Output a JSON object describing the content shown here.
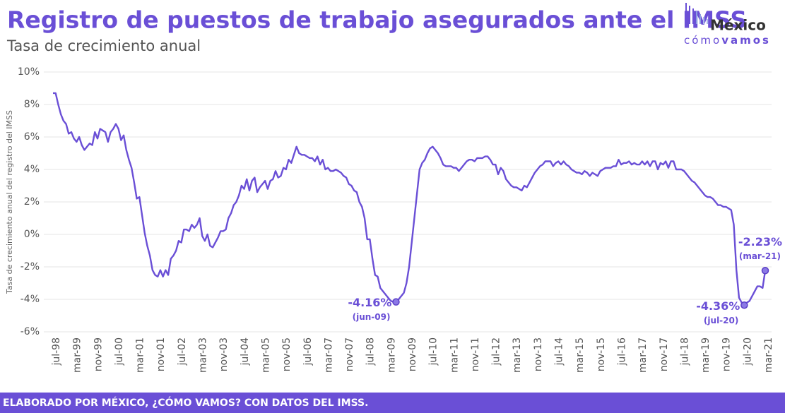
{
  "header": {
    "title": "Registro de puestos de trabajo asegurados ante el IMSS",
    "subtitle": "Tasa de crecimiento  anual"
  },
  "logo": {
    "name": "México",
    "tagline_a": "cómo",
    "tagline_b": "vamos"
  },
  "footer": "ELABORADO POR MÉXICO, ¿CÓMO VAMOS? CON DATOS DEL IMSS.",
  "chart_data": {
    "type": "line",
    "color": "#6a4fd6",
    "grid": true,
    "y_label": "Tasa de crecimiento  anual del registro del IMSS",
    "ylim": [
      -6,
      10
    ],
    "yticks": [
      {
        "value": -6,
        "label": "-6%"
      },
      {
        "value": -4,
        "label": "-4%"
      },
      {
        "value": -2,
        "label": "-2%"
      },
      {
        "value": 0,
        "label": "0%"
      },
      {
        "value": 2,
        "label": "2%"
      },
      {
        "value": 4,
        "label": "4%"
      },
      {
        "value": 6,
        "label": "6%"
      },
      {
        "value": 8,
        "label": "8%"
      },
      {
        "value": 10,
        "label": "10%"
      }
    ],
    "categories": [
      "jul-98",
      null,
      null,
      null,
      null,
      null,
      null,
      null,
      "mar-99",
      null,
      null,
      null,
      null,
      null,
      null,
      null,
      "nov-99",
      null,
      null,
      null,
      null,
      null,
      null,
      null,
      "jul-00",
      null,
      null,
      null,
      null,
      null,
      null,
      null,
      "mar-01",
      null,
      null,
      null,
      null,
      null,
      null,
      null,
      "nov-01",
      null,
      null,
      null,
      null,
      null,
      null,
      null,
      "jul-02",
      null,
      null,
      null,
      null,
      null,
      null,
      null,
      "mar-03",
      null,
      null,
      null,
      null,
      null,
      null,
      null,
      "nov-03",
      null,
      null,
      null,
      null,
      null,
      null,
      null,
      "jul-04",
      null,
      null,
      null,
      null,
      null,
      null,
      null,
      "mar-05",
      null,
      null,
      null,
      null,
      null,
      null,
      null,
      "nov-05",
      null,
      null,
      null,
      null,
      null,
      null,
      null,
      "jul-06",
      null,
      null,
      null,
      null,
      null,
      null,
      null,
      "mar-07",
      null,
      null,
      null,
      null,
      null,
      null,
      null,
      "nov-07",
      null,
      null,
      null,
      null,
      null,
      null,
      null,
      "jul-08",
      null,
      null,
      null,
      null,
      null,
      null,
      null,
      "mar-09",
      null,
      null,
      null,
      null,
      null,
      null,
      null,
      "nov-09",
      null,
      null,
      null,
      null,
      null,
      null,
      null,
      "jul-10",
      null,
      null,
      null,
      null,
      null,
      null,
      null,
      "mar-11",
      null,
      null,
      null,
      null,
      null,
      null,
      null,
      "nov-11",
      null,
      null,
      null,
      null,
      null,
      null,
      null,
      "jul-12",
      null,
      null,
      null,
      null,
      null,
      null,
      null,
      "mar-13",
      null,
      null,
      null,
      null,
      null,
      null,
      null,
      "nov-13",
      null,
      null,
      null,
      null,
      null,
      null,
      null,
      "jul-14",
      null,
      null,
      null,
      null,
      null,
      null,
      null,
      "mar-15",
      null,
      null,
      null,
      null,
      null,
      null,
      null,
      "nov-15",
      null,
      null,
      null,
      null,
      null,
      null,
      null,
      "jul-16",
      null,
      null,
      null,
      null,
      null,
      null,
      null,
      "mar-17",
      null,
      null,
      null,
      null,
      null,
      null,
      null,
      "nov-17",
      null,
      null,
      null,
      null,
      null,
      null,
      null,
      "jul-18",
      null,
      null,
      null,
      null,
      null,
      null,
      null,
      "mar-19",
      null,
      null,
      null,
      null,
      null,
      null,
      null,
      "nov-19",
      null,
      null,
      null,
      null,
      null,
      null,
      null,
      "jul-20",
      null,
      null,
      null,
      null,
      null,
      null,
      null,
      "mar-21"
    ],
    "values": [
      8.7,
      8.7,
      8.0,
      7.4,
      7.0,
      6.8,
      6.2,
      6.3,
      5.9,
      5.7,
      6.0,
      5.5,
      5.2,
      5.4,
      5.6,
      5.5,
      6.3,
      5.9,
      6.5,
      6.4,
      6.3,
      5.7,
      6.3,
      6.5,
      6.8,
      6.5,
      5.8,
      6.1,
      5.2,
      4.6,
      4.1,
      3.2,
      2.2,
      2.3,
      1.2,
      0.1,
      -0.7,
      -1.3,
      -2.2,
      -2.5,
      -2.6,
      -2.2,
      -2.6,
      -2.2,
      -2.5,
      -1.5,
      -1.3,
      -1.0,
      -0.4,
      -0.5,
      0.3,
      0.3,
      0.2,
      0.6,
      0.4,
      0.6,
      1.0,
      -0.1,
      -0.4,
      0.0,
      -0.7,
      -0.8,
      -0.5,
      -0.2,
      0.2,
      0.2,
      0.3,
      1.0,
      1.3,
      1.8,
      2.0,
      2.4,
      3.0,
      2.8,
      3.4,
      2.7,
      3.3,
      3.5,
      2.6,
      2.9,
      3.1,
      3.3,
      2.8,
      3.3,
      3.4,
      3.9,
      3.5,
      3.6,
      4.1,
      4.0,
      4.6,
      4.4,
      4.9,
      5.4,
      5.0,
      4.9,
      4.9,
      4.8,
      4.7,
      4.7,
      4.5,
      4.8,
      4.3,
      4.6,
      4.0,
      4.1,
      3.9,
      3.9,
      4.0,
      3.9,
      3.8,
      3.6,
      3.5,
      3.1,
      3.0,
      2.7,
      2.6,
      2.0,
      1.7,
      1.0,
      -0.3,
      -0.3,
      -1.5,
      -2.5,
      -2.6,
      -3.3,
      -3.5,
      -3.7,
      -3.9,
      -4.1,
      -4.15,
      -4.16,
      -4.0,
      -3.8,
      -3.6,
      -3.0,
      -2.0,
      -0.5,
      1.0,
      2.5,
      4.0,
      4.4,
      4.6,
      5.0,
      5.3,
      5.4,
      5.2,
      5.0,
      4.7,
      4.3,
      4.2,
      4.2,
      4.2,
      4.1,
      4.1,
      3.9,
      4.1,
      4.3,
      4.5,
      4.6,
      4.6,
      4.5,
      4.7,
      4.7,
      4.7,
      4.8,
      4.8,
      4.6,
      4.3,
      4.3,
      3.7,
      4.1,
      3.9,
      3.4,
      3.2,
      3.0,
      2.9,
      2.9,
      2.8,
      2.7,
      3.0,
      2.9,
      3.2,
      3.5,
      3.8,
      4.0,
      4.2,
      4.3,
      4.5,
      4.5,
      4.5,
      4.2,
      4.4,
      4.5,
      4.3,
      4.5,
      4.3,
      4.2,
      4.0,
      3.9,
      3.8,
      3.8,
      3.7,
      3.9,
      3.8,
      3.6,
      3.8,
      3.7,
      3.6,
      3.9,
      4.0,
      4.1,
      4.1,
      4.1,
      4.2,
      4.2,
      4.6,
      4.3,
      4.4,
      4.4,
      4.5,
      4.3,
      4.4,
      4.3,
      4.3,
      4.5,
      4.3,
      4.5,
      4.2,
      4.5,
      4.5,
      4.0,
      4.4,
      4.3,
      4.5,
      4.1,
      4.5,
      4.5,
      4.0,
      4.0,
      4.0,
      3.9,
      3.7,
      3.5,
      3.3,
      3.2,
      3.0,
      2.8,
      2.6,
      2.4,
      2.3,
      2.3,
      2.2,
      2.0,
      1.8,
      1.8,
      1.7,
      1.7,
      1.6,
      1.5,
      0.6,
      -2.2,
      -3.9,
      -4.2,
      -4.36,
      -4.2,
      -4.1,
      -3.8,
      -3.5,
      -3.2,
      -3.2,
      -3.3,
      -2.23
    ],
    "value_labels": [
      null,
      null,
      null,
      null,
      null,
      null,
      null,
      null,
      null,
      null,
      null,
      null,
      null,
      null,
      null,
      null,
      null,
      null,
      null,
      null,
      null,
      null,
      null,
      null,
      null,
      null,
      null,
      null,
      null,
      null,
      null,
      null,
      null,
      null,
      null,
      null,
      null,
      null,
      null,
      null,
      null,
      null,
      null,
      null,
      null,
      null,
      null,
      null,
      null,
      null,
      null,
      null,
      null,
      null,
      null,
      null,
      null,
      null,
      null,
      null,
      null,
      null,
      null,
      null,
      null,
      null,
      null,
      null,
      null,
      null,
      null,
      null,
      null,
      null,
      null,
      null,
      null,
      null,
      null,
      null,
      null,
      null,
      null,
      null,
      null,
      null,
      null,
      null,
      null,
      null,
      null,
      null,
      null,
      null,
      null,
      null,
      null,
      null,
      null,
      null,
      null,
      null,
      null,
      null,
      null,
      null,
      null,
      null,
      null,
      null,
      null,
      null,
      null,
      null,
      null,
      null,
      null,
      null,
      null,
      null,
      null,
      null,
      null,
      null,
      null,
      null,
      null,
      null,
      null,
      null,
      null,
      "-4.16%",
      null,
      null,
      null,
      null,
      null,
      null,
      null,
      null,
      null,
      null,
      null,
      null,
      null,
      null,
      null,
      null,
      null,
      null,
      null,
      null,
      null,
      null,
      null,
      null,
      null,
      null,
      null,
      null,
      null,
      null,
      null,
      null,
      null,
      null,
      null,
      null,
      null,
      null,
      null,
      null,
      null,
      null,
      null,
      null,
      null,
      null,
      null,
      null,
      null,
      null,
      null,
      null,
      null,
      null,
      null,
      null,
      null,
      null,
      null,
      null,
      null,
      null,
      null,
      null,
      null,
      null,
      null,
      null,
      null,
      null,
      null,
      null,
      null,
      null,
      null,
      null,
      null,
      null,
      null,
      null,
      null,
      null,
      null,
      null,
      null,
      null,
      null,
      null,
      null,
      null,
      null,
      null,
      null,
      null,
      null,
      null,
      null,
      null,
      null,
      null,
      null,
      null,
      null,
      null,
      null,
      null,
      null,
      null,
      null,
      null,
      null,
      null,
      null,
      null,
      null,
      null,
      null,
      null,
      null,
      null,
      null,
      null,
      null,
      null,
      null,
      null,
      null,
      null,
      null,
      null,
      null,
      null,
      "-4.36%",
      null,
      null,
      null,
      null,
      null,
      null,
      null,
      "-2.23%"
    ],
    "value_notes": [
      null,
      null,
      null,
      null,
      null,
      null,
      null,
      null,
      null,
      null,
      null,
      null,
      null,
      null,
      null,
      null,
      null,
      null,
      null,
      null,
      null,
      null,
      null,
      null,
      null,
      null,
      null,
      null,
      null,
      null,
      null,
      null,
      null,
      null,
      null,
      null,
      null,
      null,
      null,
      null,
      null,
      null,
      null,
      null,
      null,
      null,
      null,
      null,
      null,
      null,
      null,
      null,
      null,
      null,
      null,
      null,
      null,
      null,
      null,
      null,
      null,
      null,
      null,
      null,
      null,
      null,
      null,
      null,
      null,
      null,
      null,
      null,
      null,
      null,
      null,
      null,
      null,
      null,
      null,
      null,
      null,
      null,
      null,
      null,
      null,
      null,
      null,
      null,
      null,
      null,
      null,
      null,
      null,
      null,
      null,
      null,
      null,
      null,
      null,
      null,
      null,
      null,
      null,
      null,
      null,
      null,
      null,
      null,
      null,
      null,
      null,
      null,
      null,
      null,
      null,
      null,
      null,
      null,
      null,
      null,
      null,
      null,
      null,
      null,
      null,
      null,
      null,
      null,
      null,
      null,
      null,
      "(jun-09)",
      null,
      null,
      null,
      null,
      null,
      null,
      null,
      null,
      null,
      null,
      null,
      null,
      null,
      null,
      null,
      null,
      null,
      null,
      null,
      null,
      null,
      null,
      null,
      null,
      null,
      null,
      null,
      null,
      null,
      null,
      null,
      null,
      null,
      null,
      null,
      null,
      null,
      null,
      null,
      null,
      null,
      null,
      null,
      null,
      null,
      null,
      null,
      null,
      null,
      null,
      null,
      null,
      null,
      null,
      null,
      null,
      null,
      null,
      null,
      null,
      null,
      null,
      null,
      null,
      null,
      null,
      null,
      null,
      null,
      null,
      null,
      null,
      null,
      null,
      null,
      null,
      null,
      null,
      null,
      null,
      null,
      null,
      null,
      null,
      null,
      null,
      null,
      null,
      null,
      null,
      null,
      null,
      null,
      null,
      null,
      null,
      null,
      null,
      null,
      null,
      null,
      null,
      null,
      null,
      null,
      null,
      null,
      null,
      null,
      null,
      null,
      null,
      null,
      null,
      null,
      null,
      null,
      null,
      null,
      null,
      null,
      null,
      null,
      null,
      null,
      null,
      null,
      null,
      null,
      null,
      null,
      null,
      "(jul-20)",
      null,
      null,
      null,
      null,
      null,
      null,
      null,
      "(mar-21)"
    ]
  }
}
